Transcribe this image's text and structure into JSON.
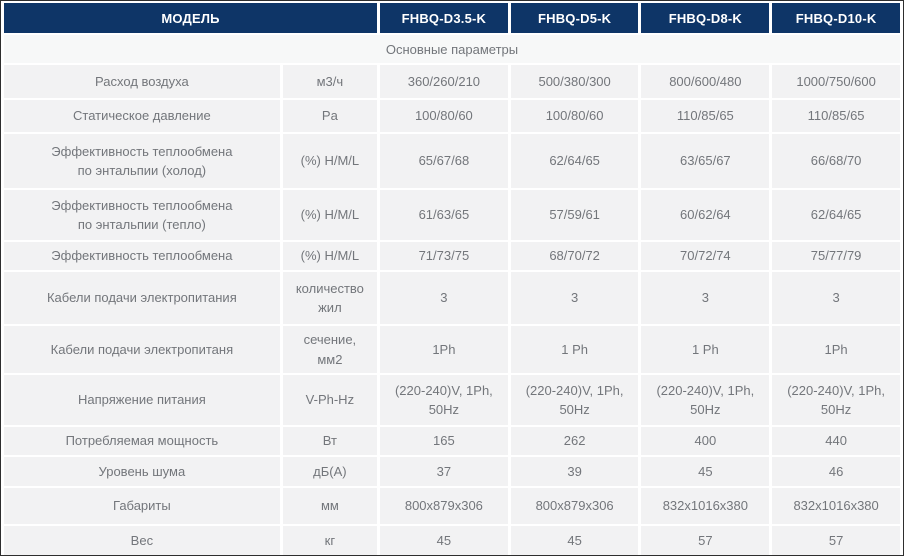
{
  "colors": {
    "header_bg": "#0e3567",
    "header_text": "#ffffff",
    "cell_bg": "#f2f2f3",
    "section_bg": "#f7f8f8",
    "body_text": "#73767b"
  },
  "table": {
    "header": {
      "model_label": "МОДЕЛЬ",
      "models": [
        "FHBQ-D3.5-K",
        "FHBQ-D5-K",
        "FHBQ-D8-K",
        "FHBQ-D10-K"
      ]
    },
    "section_title": "Основные параметры",
    "rows": [
      {
        "label": "Расход воздуха",
        "unit": "м3/ч",
        "values": [
          "360/260/210",
          "500/380/300",
          "800/600/480",
          "1000/750/600"
        ]
      },
      {
        "label": "Статическое давление",
        "unit": "Pa",
        "values": [
          "100/80/60",
          "100/80/60",
          "110/85/65",
          "110/85/65"
        ]
      },
      {
        "label": "Эффективность теплообмена по энтальпии (холод)",
        "unit": "(%) H/M/L",
        "values": [
          "65/67/68",
          "62/64/65",
          "63/65/67",
          "66/68/70"
        ]
      },
      {
        "label": "Эффективность теплообмена по энтальпии (тепло)",
        "unit": "(%) H/M/L",
        "values": [
          "61/63/65",
          "57/59/61",
          "60/62/64",
          "62/64/65"
        ]
      },
      {
        "label": "Эффективность теплообмена",
        "unit": "(%) H/M/L",
        "values": [
          "71/73/75",
          "68/70/72",
          "70/72/74",
          "75/77/79"
        ]
      },
      {
        "label": "Кабели подачи электропитания",
        "unit": "количество жил",
        "values": [
          "3",
          "3",
          "3",
          "3"
        ]
      },
      {
        "label": "Кабели подачи электропитаня",
        "unit": "сечение, мм2",
        "values": [
          "1Ph",
          "1 Ph",
          "1 Ph",
          "1Ph"
        ]
      },
      {
        "label": "Напряжение питания",
        "unit": "V-Ph-Hz",
        "values": [
          "(220-240)V, 1Ph, 50Hz",
          "(220-240)V, 1Ph, 50Hz",
          "(220-240)V, 1Ph, 50Hz",
          "(220-240)V, 1Ph, 50Hz"
        ]
      },
      {
        "label": "Потребляемая мощность",
        "unit": "Вт",
        "values": [
          "165",
          "262",
          "400",
          "440"
        ]
      },
      {
        "label": "Уровень шума",
        "unit": "дБ(А)",
        "values": [
          "37",
          "39",
          "45",
          "46"
        ]
      },
      {
        "label": "Габариты",
        "unit": "мм",
        "values": [
          "800x879x306",
          "800x879x306",
          "832x1016x380",
          "832x1016x380"
        ]
      },
      {
        "label": "Вес",
        "unit": "кг",
        "values": [
          "45",
          "45",
          "57",
          "57"
        ]
      }
    ]
  }
}
